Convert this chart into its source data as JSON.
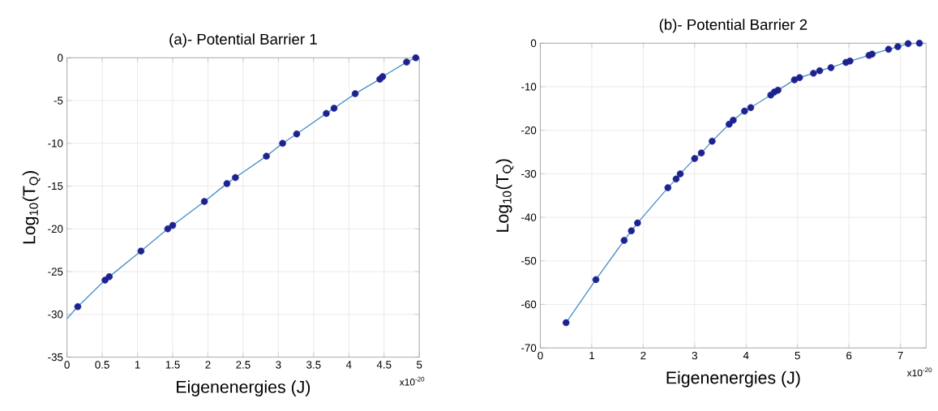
{
  "chart_data": [
    {
      "type": "line",
      "title": "(a)- Potential Barrier 1",
      "xlabel": "Eigenenergies (J)",
      "ylabel": "Log$_{10}$(T$_{Q}$)",
      "annotations": [
        "x10$^{-20}$"
      ],
      "xlim": [
        0,
        5
      ],
      "ylim": [
        -35,
        0
      ],
      "xticks": [
        0,
        0.5,
        1,
        1.5,
        2,
        2.5,
        3,
        3.5,
        4,
        4.5,
        5
      ],
      "yticks": [
        -35,
        -30,
        -25,
        -20,
        -15,
        -10,
        -5,
        0
      ],
      "grid": true,
      "series": [
        {
          "marker": "none",
          "color": "#4a90c8",
          "x": [
            0,
            0.153,
            0.54,
            0.6,
            1.05,
            1.43,
            1.5,
            1.95,
            2.27,
            2.39,
            2.83,
            3.06,
            3.26,
            3.68,
            3.79,
            4.09,
            4.44,
            4.48,
            4.82,
            4.95
          ],
          "values": [
            -30.5,
            -29.1,
            -26.0,
            -25.6,
            -22.6,
            -20.0,
            -19.6,
            -16.8,
            -14.7,
            -14.0,
            -11.5,
            -10.0,
            -8.9,
            -6.5,
            -5.9,
            -4.2,
            -2.5,
            -2.2,
            -0.5,
            0
          ]
        },
        {
          "type": "scatter",
          "marker": "circle",
          "color": "#1c2290",
          "x": [
            0.153,
            0.54,
            0.6,
            1.05,
            1.43,
            1.5,
            1.95,
            2.27,
            2.39,
            2.83,
            3.06,
            3.26,
            3.68,
            3.79,
            4.09,
            4.44,
            4.48,
            4.82,
            4.95
          ],
          "values": [
            -29.1,
            -26.0,
            -25.6,
            -22.6,
            -20.0,
            -19.6,
            -16.8,
            -14.7,
            -14.0,
            -11.5,
            -10.0,
            -8.9,
            -6.5,
            -5.9,
            -4.2,
            -2.5,
            -2.2,
            -0.5,
            0
          ]
        }
      ]
    },
    {
      "type": "line",
      "title": "(b)- Potential Barrier 2",
      "xlabel": "Eigenenergies (J)",
      "ylabel": "Log$_{10}$(T$_{Q}$)",
      "annotations": [
        "x10$^{-20}$"
      ],
      "xlim": [
        0,
        7.5
      ],
      "ylim": [
        -70,
        0
      ],
      "xticks": [
        0,
        1,
        2,
        3,
        4,
        5,
        6,
        7
      ],
      "yticks": [
        -70,
        -60,
        -50,
        -40,
        -30,
        -20,
        -10,
        0
      ],
      "grid": true,
      "series": [
        {
          "marker": "none",
          "color": "#4a90c8",
          "x": [
            0.5,
            1.08,
            1.63,
            1.77,
            1.89,
            2.48,
            2.64,
            2.72,
            3.0,
            3.13,
            3.34,
            3.67,
            3.75,
            3.97,
            4.09,
            4.48,
            4.55,
            4.62,
            4.94,
            5.04,
            5.31,
            5.43,
            5.65,
            5.94,
            6.02,
            6.39,
            6.45,
            6.77,
            6.95,
            7.15,
            7.37
          ],
          "values": [
            -64.2,
            -54.3,
            -45.3,
            -43.1,
            -41.3,
            -33.2,
            -31.2,
            -30.0,
            -26.5,
            -25.2,
            -22.5,
            -18.6,
            -17.7,
            -15.6,
            -14.8,
            -11.9,
            -11.2,
            -10.8,
            -8.4,
            -7.9,
            -6.9,
            -6.3,
            -5.6,
            -4.4,
            -4.1,
            -2.8,
            -2.5,
            -1.4,
            -0.8,
            -0.1,
            0
          ]
        },
        {
          "type": "scatter",
          "marker": "circle",
          "color": "#1c2290",
          "x": [
            0.5,
            1.08,
            1.63,
            1.77,
            1.89,
            2.48,
            2.64,
            2.72,
            3.0,
            3.13,
            3.34,
            3.67,
            3.75,
            3.97,
            4.09,
            4.48,
            4.55,
            4.62,
            4.94,
            5.04,
            5.31,
            5.43,
            5.65,
            5.94,
            6.02,
            6.39,
            6.45,
            6.77,
            6.95,
            7.15,
            7.37
          ],
          "values": [
            -64.2,
            -54.3,
            -45.3,
            -43.1,
            -41.3,
            -33.2,
            -31.2,
            -30.0,
            -26.5,
            -25.2,
            -22.5,
            -18.6,
            -17.7,
            -15.6,
            -14.8,
            -11.9,
            -11.2,
            -10.8,
            -8.4,
            -7.9,
            -6.9,
            -6.3,
            -5.6,
            -4.4,
            -4.1,
            -2.8,
            -2.5,
            -1.4,
            -0.8,
            -0.1,
            0
          ]
        }
      ]
    }
  ]
}
